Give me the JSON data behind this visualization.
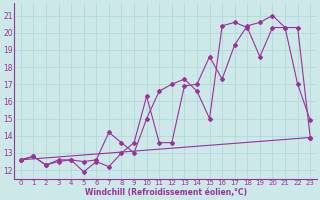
{
  "background_color": "#cce8e8",
  "grid_color": "#b0d4d4",
  "line_color": "#993399",
  "xlabel": "Windchill (Refroidissement éolien,°C)",
  "yticks": [
    12,
    13,
    14,
    15,
    16,
    17,
    18,
    19,
    20,
    21
  ],
  "xticks": [
    0,
    1,
    2,
    3,
    4,
    5,
    6,
    7,
    8,
    9,
    10,
    11,
    12,
    13,
    14,
    15,
    16,
    17,
    18,
    19,
    20,
    21,
    22,
    23
  ],
  "xlim": [
    -0.5,
    23.5
  ],
  "ylim": [
    11.5,
    21.7
  ],
  "line1_x": [
    0,
    1,
    2,
    3,
    4,
    5,
    6,
    7,
    8,
    9,
    10,
    11,
    12,
    13,
    14,
    15,
    16,
    17,
    18,
    19,
    20,
    21,
    22,
    23
  ],
  "line1_y": [
    12.6,
    12.8,
    12.3,
    12.5,
    12.6,
    11.9,
    12.5,
    12.2,
    13.0,
    13.6,
    16.3,
    13.6,
    13.6,
    16.9,
    17.0,
    18.6,
    17.3,
    19.3,
    20.4,
    20.6,
    21.0,
    20.3,
    17.0,
    14.9
  ],
  "line2_x": [
    0,
    1,
    2,
    3,
    4,
    5,
    6,
    7,
    8,
    9,
    10,
    11,
    12,
    13,
    14,
    15,
    16,
    17,
    18,
    19,
    20,
    21,
    22,
    23
  ],
  "line2_y": [
    12.6,
    12.8,
    12.3,
    12.6,
    12.6,
    12.5,
    12.6,
    14.2,
    13.6,
    13.0,
    15.0,
    16.6,
    17.0,
    17.3,
    16.6,
    15.0,
    20.4,
    20.6,
    20.3,
    18.6,
    20.3,
    20.3,
    20.3,
    13.9
  ],
  "line3_x": [
    0,
    23
  ],
  "line3_y": [
    12.6,
    13.9
  ],
  "tick_fontsize": 5.5,
  "xlabel_fontsize": 5.5,
  "marker_size": 2.0,
  "line_width": 0.8
}
